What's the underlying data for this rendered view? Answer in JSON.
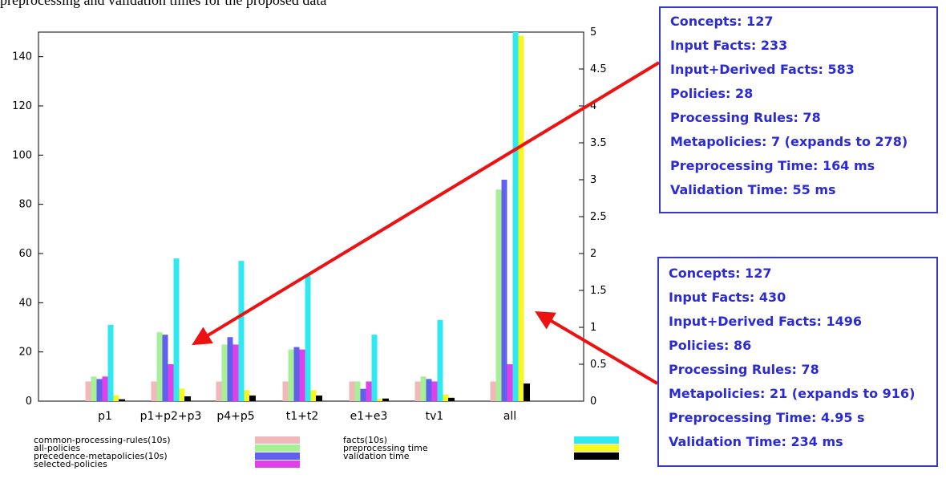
{
  "page_caption": "preprocessing and validation times for the proposed data",
  "chart_data": {
    "type": "bar",
    "categories": [
      "p1",
      "p1+p2+p3",
      "p4+p5",
      "t1+t2",
      "e1+e3",
      "tv1",
      "all"
    ],
    "y_left_ticks": [
      "0",
      "20",
      "40",
      "60",
      "80",
      "100",
      "120",
      "140"
    ],
    "y_right_ticks": [
      "0",
      "0.5",
      "1",
      "1.5",
      "2",
      "2.5",
      "3",
      "3.5",
      "4",
      "4.5",
      "5"
    ],
    "ylim_left": [
      0,
      150
    ],
    "ylim_right": [
      0,
      5
    ],
    "grid": false,
    "legend_position": "bottom",
    "series": [
      {
        "name": "common-processing-rules(10s)",
        "axis": "left",
        "color": "#f0b8b8",
        "values": [
          8,
          8,
          8,
          8,
          8,
          8,
          8
        ]
      },
      {
        "name": "all-policies",
        "axis": "left",
        "color": "#a8f098",
        "values": [
          10,
          28,
          23,
          21,
          8,
          10,
          86
        ]
      },
      {
        "name": "precedence-metapolicies(10s)",
        "axis": "left",
        "color": "#6060ee",
        "values": [
          9,
          27,
          26,
          22,
          5,
          9,
          90
        ]
      },
      {
        "name": "selected-policies",
        "axis": "left",
        "color": "#e040e8",
        "values": [
          10,
          15,
          23,
          21,
          8,
          8,
          15
        ]
      },
      {
        "name": "facts(10s)",
        "axis": "left",
        "color": "#30e8f0",
        "values": [
          31,
          58,
          57,
          51,
          27,
          33,
          150
        ]
      },
      {
        "name": "preprocessing time",
        "axis": "right",
        "color": "#f8f820",
        "values": [
          0.08,
          0.17,
          0.15,
          0.15,
          0.03,
          0.09,
          4.95
        ]
      },
      {
        "name": "validation time",
        "axis": "right",
        "color": "#000000",
        "values": [
          0.02,
          0.06,
          0.07,
          0.07,
          0.03,
          0.04,
          0.234
        ]
      }
    ]
  },
  "callouts": [
    {
      "lines": [
        "Concepts: 127",
        "Input Facts: 233",
        "Input+Derived Facts: 583",
        "Policies: 28",
        "Processing Rules: 78",
        "Metapolicies: 7 (expands to 278)",
        "Preprocessing Time: 164 ms",
        "Validation Time: 55 ms"
      ],
      "points_to": "p1+p2+p3"
    },
    {
      "lines": [
        "Concepts: 127",
        "Input Facts: 430",
        "Input+Derived Facts: 1496",
        "Policies: 86",
        "Processing Rules: 78",
        "Metapolicies: 21 (expands to 916)",
        "Preprocessing Time: 4.95 s",
        "Validation Time: 234 ms"
      ],
      "points_to": "all"
    }
  ],
  "colors": {
    "callout_border": "#3838c8",
    "callout_text": "#2b2bd6",
    "arrow": "#ee1111"
  }
}
